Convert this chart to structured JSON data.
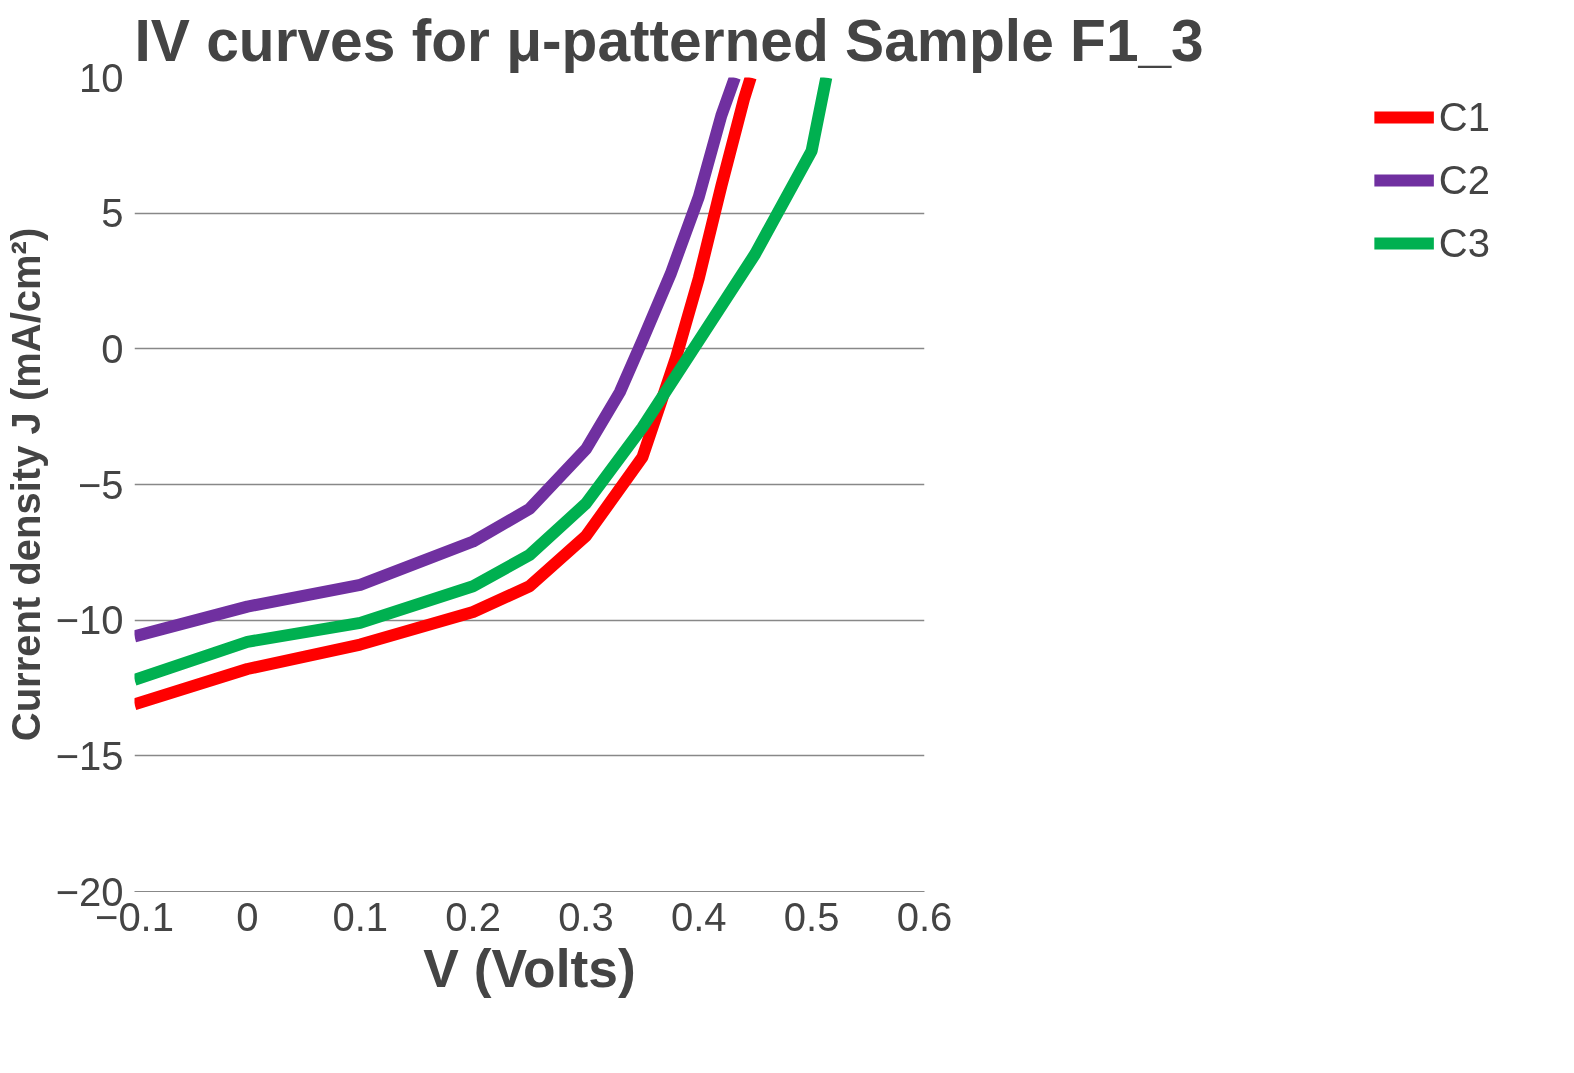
{
  "chart_data": {
    "type": "line",
    "title": "IV curves for μ-patterned Sample F1_3",
    "xlabel": "V (Volts)",
    "ylabel": "Current density J (mA/cm²)",
    "xlim": [
      -0.1,
      0.6
    ],
    "xticks": [
      -0.1,
      0,
      0.1,
      0.2,
      0.3,
      0.4,
      0.5,
      0.6
    ],
    "ylim": [
      -20,
      10
    ],
    "yticks": [
      -20,
      -15,
      -10,
      -5,
      0,
      5,
      10
    ],
    "grid": "y",
    "legend": "right",
    "line_style": "solid",
    "marker": "none",
    "series": [
      {
        "name": "C1",
        "color": "#ff0000",
        "x": [
          -0.1,
          0,
          0.1,
          0.2,
          0.25,
          0.3,
          0.35,
          0.38,
          0.4,
          0.42,
          0.44,
          0.446
        ],
        "values": [
          -13.1,
          -11.8,
          -10.9,
          -9.7,
          -8.75,
          -6.9,
          -4.0,
          -0.3,
          2.6,
          6.0,
          9.2,
          10
        ]
      },
      {
        "name": "C2",
        "color": "#7030a0",
        "x": [
          -0.1,
          0,
          0.1,
          0.2,
          0.25,
          0.3,
          0.33,
          0.35,
          0.375,
          0.4,
          0.42,
          0.432
        ],
        "values": [
          -10.6,
          -9.5,
          -8.7,
          -7.1,
          -5.9,
          -3.7,
          -1.6,
          0.3,
          2.75,
          5.6,
          8.6,
          10
        ]
      },
      {
        "name": "C3",
        "color": "#00b050",
        "x": [
          -0.1,
          0,
          0.1,
          0.2,
          0.25,
          0.3,
          0.35,
          0.4,
          0.45,
          0.5,
          0.513
        ],
        "values": [
          -12.2,
          -10.8,
          -10.1,
          -8.75,
          -7.6,
          -5.7,
          -2.9,
          0.3,
          3.5,
          7.3,
          10
        ]
      }
    ]
  }
}
